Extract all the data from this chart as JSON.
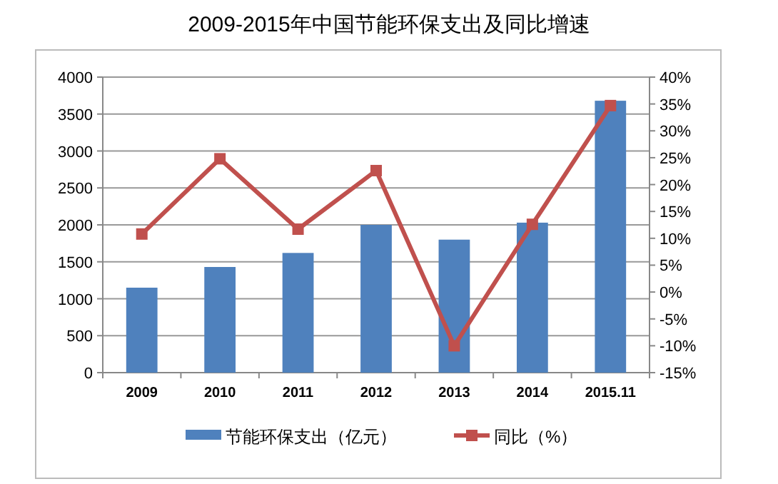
{
  "chart_data": {
    "type": "bar",
    "title": "2009-2015年中国节能环保支出及同比增速",
    "categories": [
      "2009",
      "2010",
      "2011",
      "2012",
      "2013",
      "2014",
      "2015.11"
    ],
    "series": [
      {
        "name": "节能环保支出（亿元）",
        "color": "#4f81bd",
        "values": [
          1150,
          1430,
          1620,
          2000,
          1800,
          2030,
          3680
        ]
      },
      {
        "name": "同比（%）",
        "type": "line",
        "axis": "y2",
        "color": "#c0504d",
        "values": [
          10.8,
          24.8,
          11.7,
          22.6,
          -10,
          12.6,
          34.7
        ]
      }
    ],
    "marker": "square",
    "line_style": "solid",
    "ylim": [
      0,
      4000
    ],
    "yticks": [
      0,
      500,
      1000,
      1500,
      2000,
      2500,
      3000,
      3500,
      4000
    ],
    "y2lim": [
      -15,
      40
    ],
    "y2ticks": [
      {
        "value": -15,
        "label": "-15%"
      },
      {
        "value": -10,
        "label": "-10%"
      },
      {
        "value": -5,
        "label": "-5%"
      },
      {
        "value": 0,
        "label": "0%"
      },
      {
        "value": 5,
        "label": "5%"
      },
      {
        "value": 10,
        "label": "10%"
      },
      {
        "value": 15,
        "label": "15%"
      },
      {
        "value": 20,
        "label": "20%"
      },
      {
        "value": 25,
        "label": "25%"
      },
      {
        "value": 30,
        "label": "30%"
      },
      {
        "value": 35,
        "label": "35%"
      },
      {
        "value": 40,
        "label": "40%"
      }
    ],
    "grid": "y",
    "legend": "bottom"
  }
}
